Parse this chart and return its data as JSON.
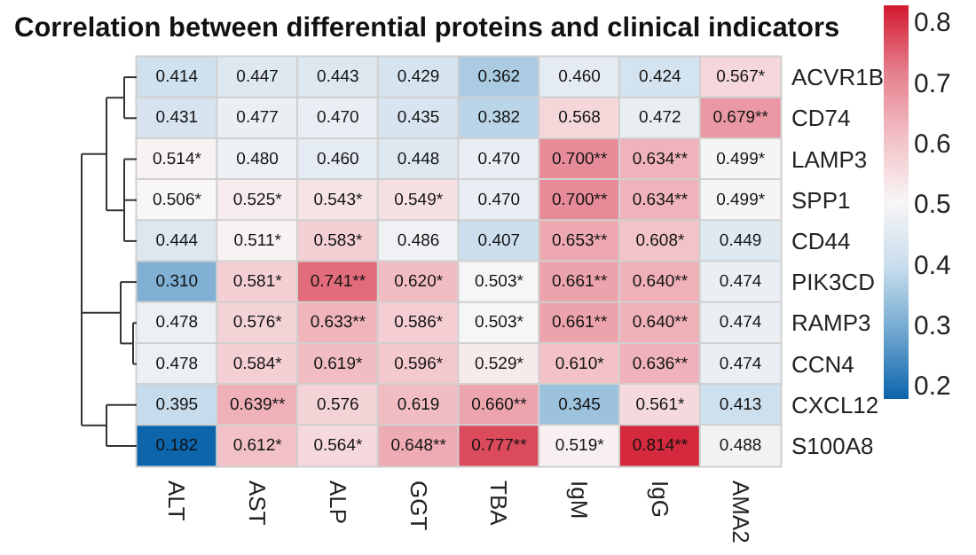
{
  "chart_data": {
    "type": "heatmap",
    "title": "Correlation between differential proteins and clinical indicators",
    "categories": [
      "ALT",
      "AST",
      "ALP",
      "GGT",
      "TBA",
      "IgM",
      "IgG",
      "AMA2"
    ],
    "y_categories": [
      "ACVR1B",
      "CD74",
      "LAMP3",
      "SPP1",
      "CD44",
      "PIK3CD",
      "RAMP3",
      "CCN4",
      "CXCL12",
      "S100A8"
    ],
    "cells": [
      [
        0.414,
        0.447,
        0.443,
        0.429,
        0.362,
        0.46,
        0.424,
        0.567
      ],
      [
        0.431,
        0.477,
        0.47,
        0.435,
        0.382,
        0.568,
        0.472,
        0.679
      ],
      [
        0.514,
        0.48,
        0.46,
        0.448,
        0.47,
        0.7,
        0.634,
        0.499
      ],
      [
        0.506,
        0.525,
        0.543,
        0.549,
        0.47,
        0.7,
        0.634,
        0.499
      ],
      [
        0.444,
        0.511,
        0.583,
        0.486,
        0.407,
        0.653,
        0.608,
        0.449
      ],
      [
        0.31,
        0.581,
        0.741,
        0.62,
        0.503,
        0.661,
        0.64,
        0.474
      ],
      [
        0.478,
        0.576,
        0.633,
        0.586,
        0.503,
        0.661,
        0.64,
        0.474
      ],
      [
        0.478,
        0.584,
        0.619,
        0.596,
        0.529,
        0.61,
        0.636,
        0.474
      ],
      [
        0.395,
        0.639,
        0.576,
        0.619,
        0.66,
        0.345,
        0.561,
        0.413
      ],
      [
        0.182,
        0.612,
        0.564,
        0.648,
        0.777,
        0.519,
        0.814,
        0.488
      ]
    ],
    "cell_labels": [
      [
        "0.414",
        "0.447",
        "0.443",
        "0.429",
        "0.362",
        "0.460",
        "0.424",
        "0.567*"
      ],
      [
        "0.431",
        "0.477",
        "0.470",
        "0.435",
        "0.382",
        "0.568",
        "0.472",
        "0.679**"
      ],
      [
        "0.514*",
        "0.480",
        "0.460",
        "0.448",
        "0.470",
        "0.700**",
        "0.634**",
        "0.499*"
      ],
      [
        "0.506*",
        "0.525*",
        "0.543*",
        "0.549*",
        "0.470",
        "0.700**",
        "0.634**",
        "0.499*"
      ],
      [
        "0.444",
        "0.511*",
        "0.583*",
        "0.486",
        "0.407",
        "0.653**",
        "0.608*",
        "0.449"
      ],
      [
        "0.310",
        "0.581*",
        "0.741**",
        "0.620*",
        "0.503*",
        "0.661**",
        "0.640**",
        "0.474"
      ],
      [
        "0.478",
        "0.576*",
        "0.633**",
        "0.586*",
        "0.503*",
        "0.661**",
        "0.640**",
        "0.474"
      ],
      [
        "0.478",
        "0.584*",
        "0.619*",
        "0.596*",
        "0.529*",
        "0.610*",
        "0.636**",
        "0.474"
      ],
      [
        "0.395",
        "0.639**",
        "0.576",
        "0.619",
        "0.660**",
        "0.345",
        "0.561*",
        "0.413"
      ],
      [
        "0.182",
        "0.612*",
        "0.564*",
        "0.648**",
        "0.777**",
        "0.519*",
        "0.814**",
        "0.488"
      ]
    ],
    "clim": [
      0.18,
      0.83
    ],
    "cticks": [
      0.2,
      0.3,
      0.4,
      0.5,
      0.6,
      0.7,
      0.8
    ]
  }
}
